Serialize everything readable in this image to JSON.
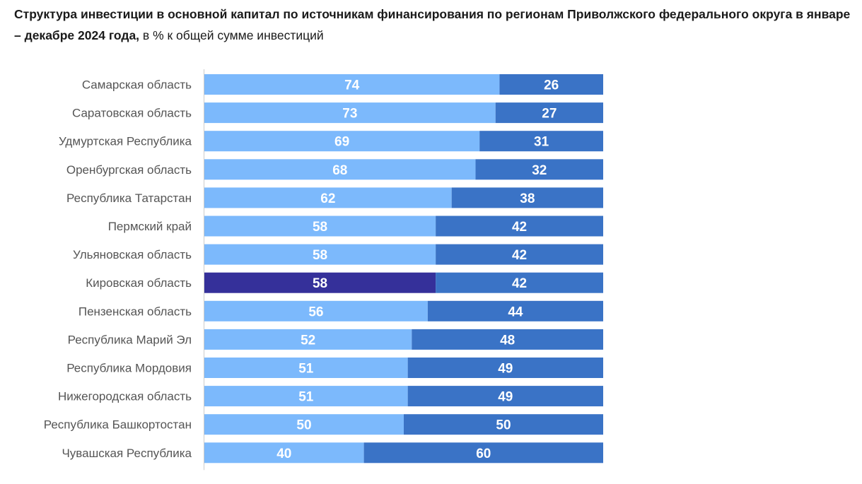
{
  "title": "Структура инвестиции в основной капитал по источникам финансирования по регионам Приволжского федерального округа в январе – декабре 2024 года,",
  "subtitle": "в % к общей сумме инвестиций",
  "colors": {
    "own_funds": "#7cb9fc",
    "raised_funds": "#3a73c6",
    "highlight": "#35309a",
    "label_text": "#555555",
    "axis": "#cccccc"
  },
  "chart_data": {
    "type": "bar",
    "orientation": "horizontal",
    "stacked": true,
    "normalized_percent": true,
    "title": "Структура инвестиции в основной капитал по источникам финансирования по регионам Приволжского федерального округа в январе – декабре 2024 года,",
    "subtitle": "в % к общей сумме инвестиций",
    "xlim": [
      0,
      100
    ],
    "grid": false,
    "legend": "none",
    "highlight_category": "Кировская область",
    "categories": [
      "Самарская область",
      "Саратовская область",
      "Удмуртская Республика",
      "Оренбургская область",
      "Республика Татарстан",
      "Пермский край",
      "Ульяновская область",
      "Кировская область",
      "Пензенская область",
      "Республика Марий Эл",
      "Республика Мордовия",
      "Нижегородская область",
      "Республика Башкортостан",
      "Чувашская Республика"
    ],
    "series": [
      {
        "values": [
          74,
          73,
          69,
          68,
          62,
          58,
          58,
          58,
          56,
          52,
          51,
          51,
          50,
          40
        ]
      },
      {
        "values": [
          26,
          27,
          31,
          32,
          38,
          42,
          42,
          42,
          44,
          48,
          49,
          49,
          50,
          60
        ]
      }
    ]
  }
}
